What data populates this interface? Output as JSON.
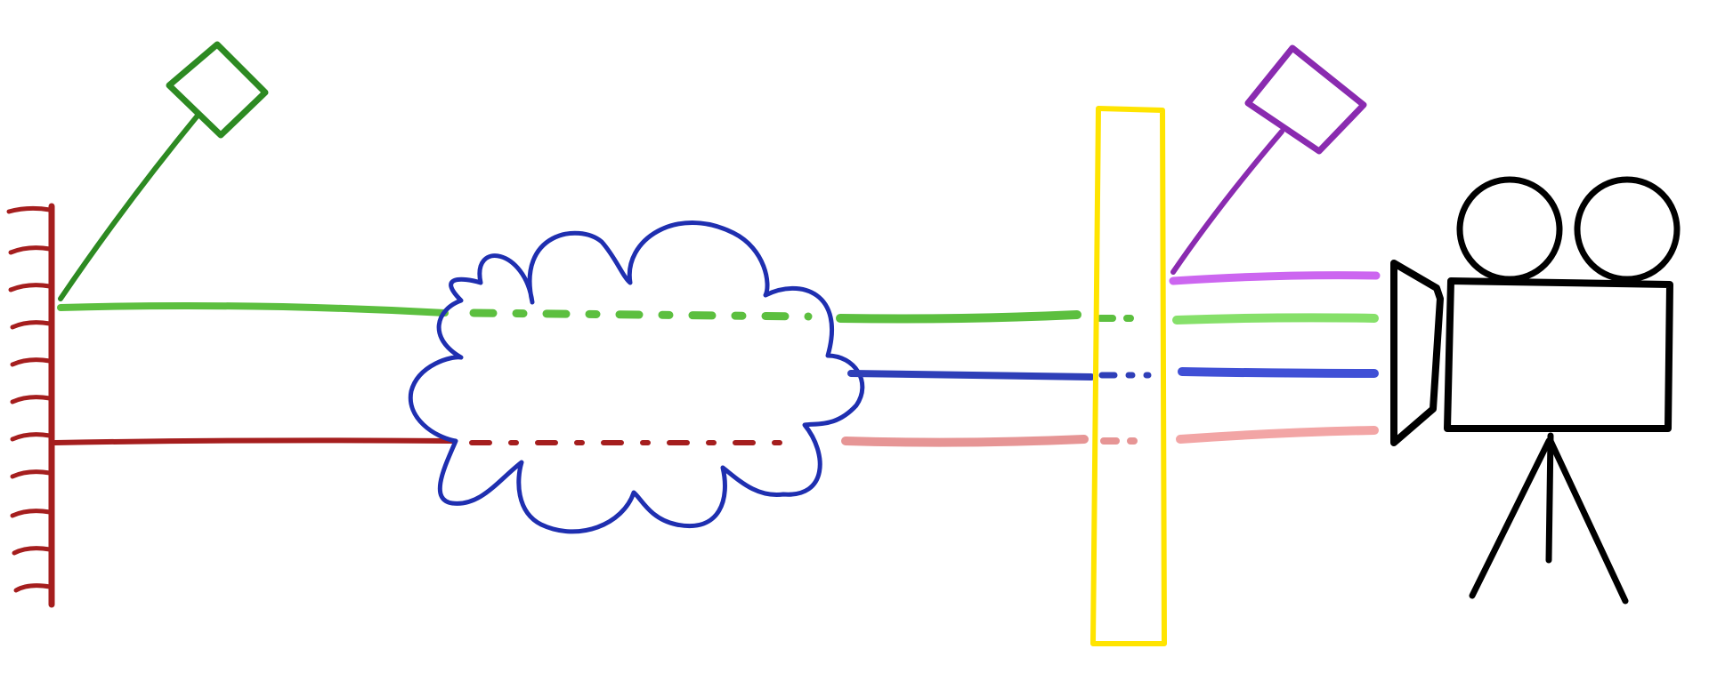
{
  "diagram": {
    "colors": {
      "wall": "#a51e1e",
      "wall_beam": "#a51e1e",
      "source_green": "#2d8a22",
      "green_beam": "#5cbf3f",
      "green_beam_out": "#86e06a",
      "cloud": "#1f2fb0",
      "blue_beam": "#2f3fb8",
      "blue_beam_out": "#4050d6",
      "red_beam_out": "#e69595",
      "red_beam_after": "#f2a5a5",
      "filter": "#ffe400",
      "source_purple": "#8a2bb0",
      "purple_beam": "#cc66f0",
      "camera": "#000000"
    },
    "icons": [
      "mirror-wall-icon",
      "green-lamp-icon",
      "cloud-icon",
      "filter-plate-icon",
      "purple-lamp-icon",
      "movie-camera-icon"
    ]
  }
}
